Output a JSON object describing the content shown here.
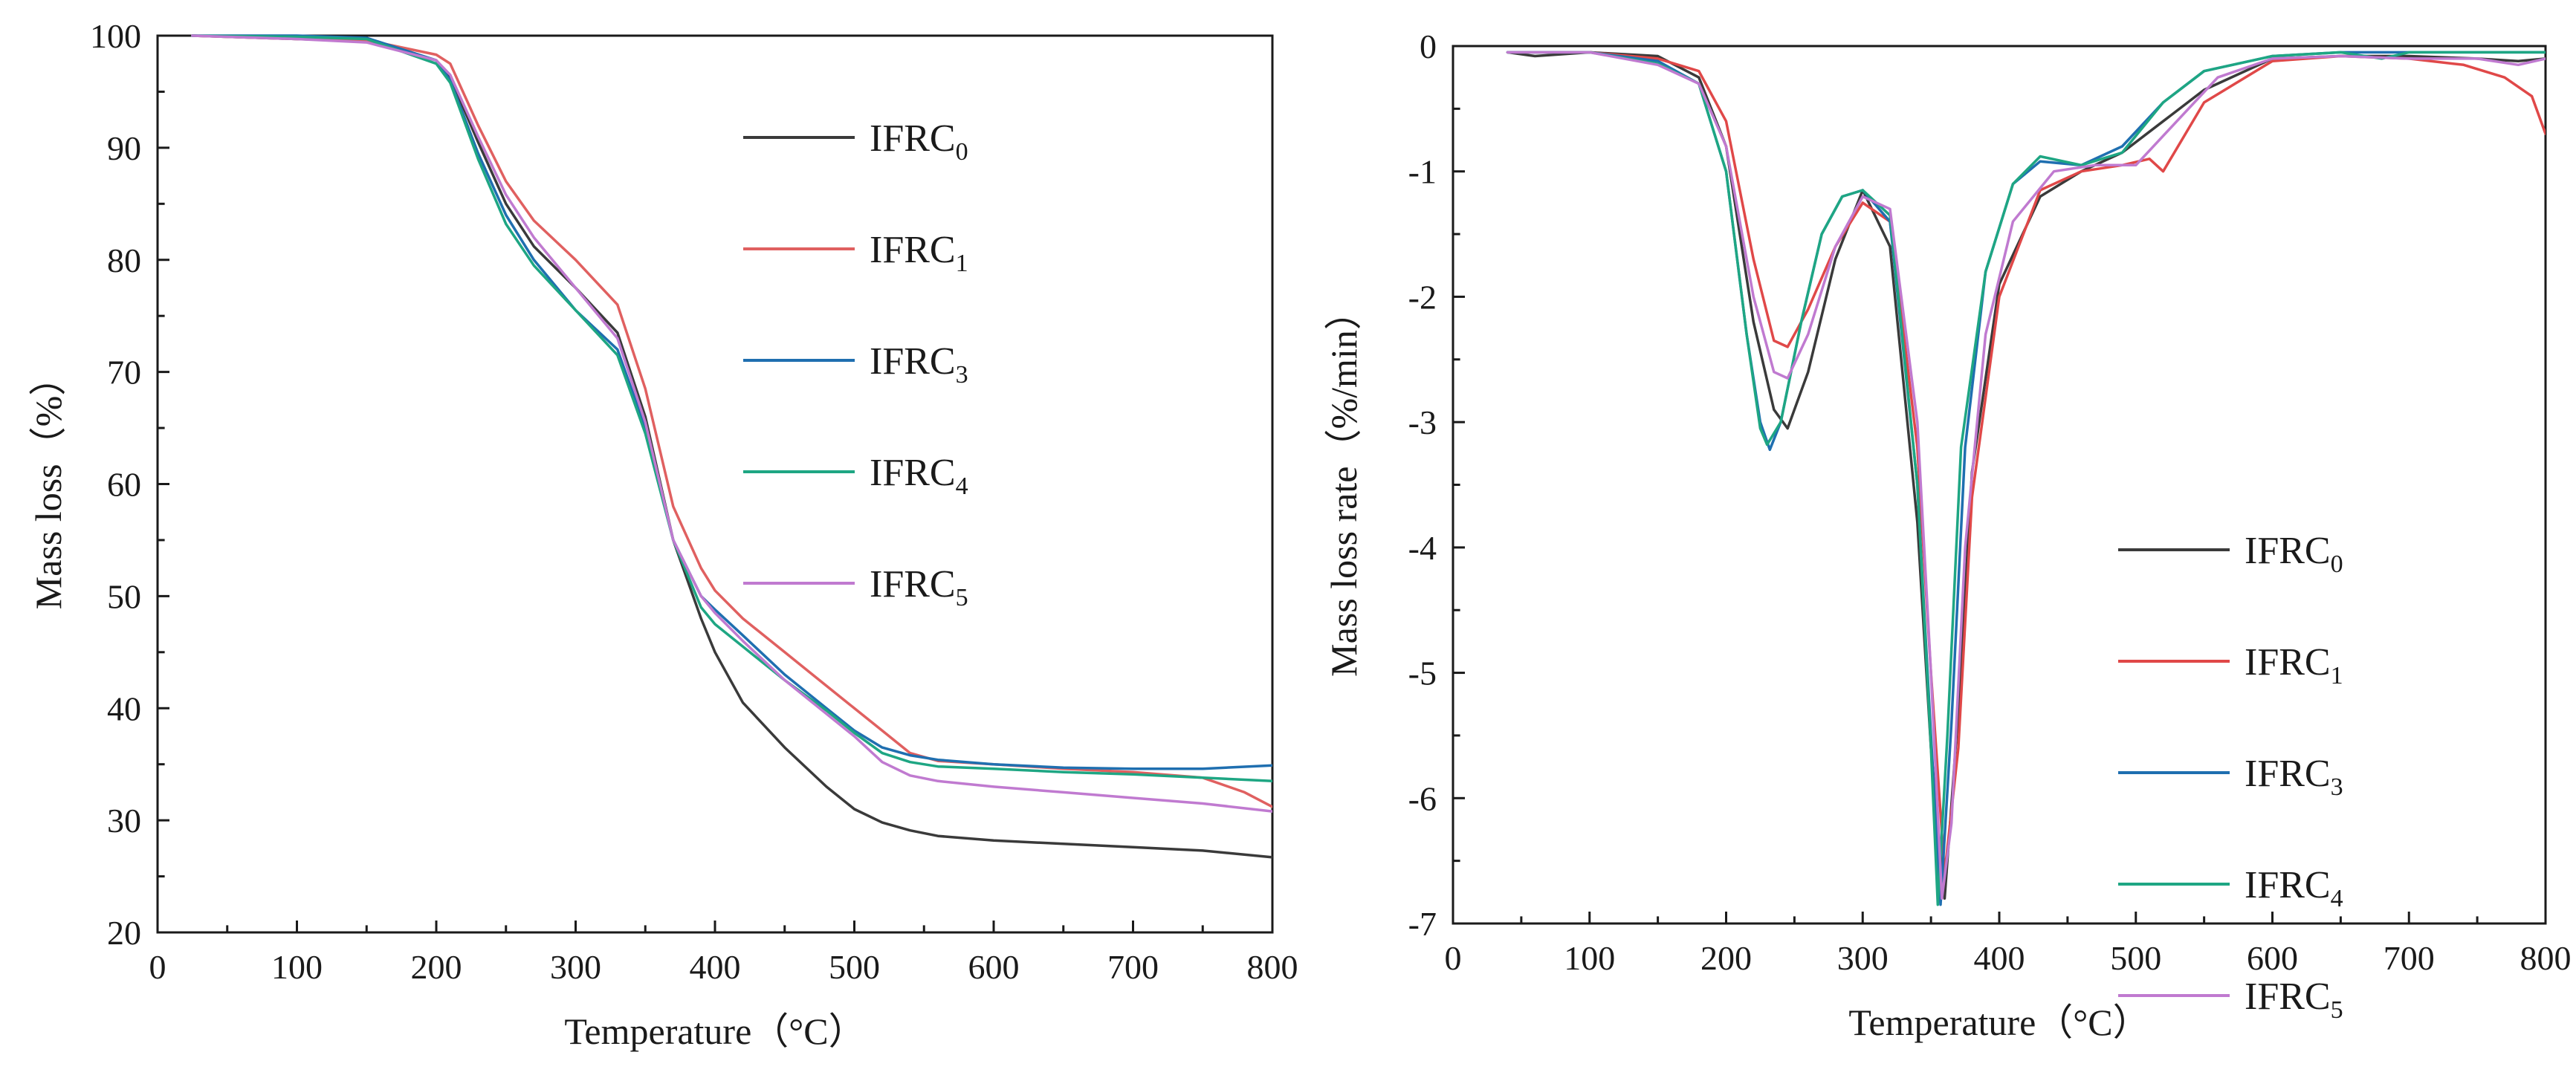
{
  "chart_data": [
    {
      "type": "line",
      "xlabel": "Temperature（°C）",
      "ylabel": "Mass loss（%）",
      "xlim": [
        0,
        800
      ],
      "ylim": [
        20,
        100
      ],
      "xticks": [
        0,
        100,
        200,
        300,
        400,
        500,
        600,
        700,
        800
      ],
      "yticks": [
        20,
        30,
        40,
        50,
        60,
        70,
        80,
        90,
        100
      ],
      "grid": false,
      "legend_position": "top-right",
      "series": [
        {
          "name": "IFRC",
          "sub": "0",
          "color": "#3a3a3a",
          "x": [
            25,
            100,
            150,
            200,
            210,
            230,
            250,
            270,
            300,
            330,
            350,
            370,
            390,
            400,
            420,
            450,
            480,
            500,
            520,
            540,
            560,
            600,
            650,
            700,
            750,
            800
          ],
          "y": [
            100,
            99.7,
            99.5,
            97.8,
            96.3,
            90.5,
            85,
            81.2,
            77.5,
            73.5,
            66,
            55,
            48,
            45,
            40.5,
            36.5,
            33,
            31,
            29.8,
            29.1,
            28.6,
            28.2,
            27.9,
            27.6,
            27.3,
            26.7
          ]
        },
        {
          "name": "IFRC",
          "sub": "1",
          "color": "#e06060",
          "x": [
            25,
            100,
            150,
            200,
            210,
            230,
            250,
            270,
            300,
            330,
            350,
            370,
            390,
            400,
            420,
            450,
            480,
            500,
            520,
            540,
            560,
            600,
            650,
            700,
            750,
            780,
            800
          ],
          "y": [
            100,
            99.7,
            99.6,
            98.3,
            97.5,
            92,
            87,
            83.5,
            80,
            76,
            68.5,
            58,
            52.5,
            50.5,
            48,
            45,
            42,
            40,
            38,
            36,
            35.3,
            35,
            34.6,
            34.3,
            33.8,
            32.5,
            31.2
          ]
        },
        {
          "name": "IFRC",
          "sub": "3",
          "color": "#1f6fb0",
          "x": [
            25,
            100,
            150,
            200,
            210,
            230,
            250,
            270,
            300,
            330,
            350,
            370,
            390,
            400,
            420,
            450,
            480,
            500,
            520,
            540,
            560,
            600,
            650,
            700,
            750,
            800
          ],
          "y": [
            100,
            100,
            99.8,
            97.8,
            96,
            89.5,
            84,
            80,
            75.5,
            72,
            65,
            55,
            50,
            48.8,
            46.5,
            43,
            40,
            38,
            36.5,
            35.8,
            35.4,
            35,
            34.7,
            34.6,
            34.6,
            34.9
          ]
        },
        {
          "name": "IFRC",
          "sub": "4",
          "color": "#1ea683",
          "x": [
            25,
            100,
            150,
            200,
            210,
            230,
            250,
            270,
            300,
            330,
            350,
            370,
            390,
            400,
            420,
            450,
            480,
            500,
            520,
            540,
            560,
            600,
            650,
            700,
            750,
            800
          ],
          "y": [
            100,
            99.9,
            99.7,
            97.5,
            95.8,
            89,
            83.2,
            79.5,
            75.5,
            71.5,
            64.5,
            55,
            49,
            47.5,
            45.5,
            42.5,
            39.8,
            37.8,
            36,
            35.2,
            34.8,
            34.6,
            34.3,
            34.1,
            33.8,
            33.5
          ]
        },
        {
          "name": "IFRC",
          "sub": "5",
          "color": "#c07ad0",
          "x": [
            25,
            100,
            150,
            200,
            210,
            230,
            250,
            270,
            300,
            330,
            350,
            370,
            390,
            400,
            420,
            450,
            480,
            500,
            520,
            540,
            560,
            600,
            650,
            700,
            750,
            800
          ],
          "y": [
            100,
            99.7,
            99.4,
            97.8,
            96.5,
            91,
            85.8,
            82,
            77.5,
            73,
            65.5,
            55,
            50,
            48.5,
            46,
            42.5,
            39.5,
            37.5,
            35.2,
            34,
            33.5,
            33,
            32.5,
            32,
            31.5,
            30.8
          ]
        }
      ]
    },
    {
      "type": "line",
      "xlabel": "Temperature（°C）",
      "ylabel": "Mass loss rate（%/min）",
      "xlim": [
        0,
        800
      ],
      "ylim": [
        -7,
        0
      ],
      "xticks": [
        0,
        100,
        200,
        300,
        400,
        500,
        600,
        700,
        800
      ],
      "yticks": [
        -7,
        -6,
        -5,
        -4,
        -3,
        -2,
        -1,
        0
      ],
      "grid": false,
      "legend_position": "bottom-right",
      "series": [
        {
          "name": "IFRC",
          "sub": "0",
          "color": "#3a3a3a",
          "x": [
            40,
            60,
            100,
            150,
            180,
            200,
            220,
            235,
            245,
            260,
            280,
            300,
            320,
            340,
            350,
            360,
            370,
            380,
            400,
            430,
            460,
            490,
            520,
            550,
            600,
            650,
            700,
            750,
            780,
            800
          ],
          "y": [
            -0.05,
            -0.08,
            -0.05,
            -0.08,
            -0.25,
            -0.8,
            -2.2,
            -2.9,
            -3.05,
            -2.6,
            -1.7,
            -1.15,
            -1.6,
            -3.8,
            -5.6,
            -6.8,
            -5.3,
            -3.4,
            -1.9,
            -1.2,
            -1.0,
            -0.85,
            -0.6,
            -0.35,
            -0.1,
            -0.08,
            -0.08,
            -0.1,
            -0.12,
            -0.1
          ]
        },
        {
          "name": "IFRC",
          "sub": "1",
          "color": "#e04848",
          "x": [
            40,
            100,
            150,
            180,
            200,
            220,
            235,
            245,
            260,
            280,
            300,
            320,
            340,
            350,
            360,
            370,
            380,
            400,
            430,
            460,
            490,
            510,
            520,
            550,
            600,
            650,
            700,
            740,
            770,
            790,
            800
          ],
          "y": [
            -0.05,
            -0.05,
            -0.1,
            -0.2,
            -0.6,
            -1.7,
            -2.35,
            -2.4,
            -2.1,
            -1.6,
            -1.25,
            -1.4,
            -3.2,
            -5.0,
            -6.6,
            -5.6,
            -3.6,
            -2.0,
            -1.15,
            -1.0,
            -0.95,
            -0.9,
            -1.0,
            -0.45,
            -0.12,
            -0.08,
            -0.1,
            -0.15,
            -0.25,
            -0.4,
            -0.7
          ]
        },
        {
          "name": "IFRC",
          "sub": "3",
          "color": "#1f6fb0",
          "x": [
            40,
            100,
            150,
            180,
            200,
            215,
            225,
            232,
            240,
            255,
            270,
            285,
            300,
            320,
            340,
            350,
            357,
            365,
            375,
            390,
            410,
            430,
            460,
            490,
            520,
            550,
            600,
            650,
            700,
            750,
            800
          ],
          "y": [
            -0.05,
            -0.05,
            -0.12,
            -0.3,
            -1.0,
            -2.3,
            -3.0,
            -3.22,
            -3.0,
            -2.2,
            -1.5,
            -1.2,
            -1.15,
            -1.4,
            -3.5,
            -5.5,
            -6.85,
            -5.4,
            -3.2,
            -1.8,
            -1.1,
            -0.92,
            -0.95,
            -0.8,
            -0.45,
            -0.2,
            -0.08,
            -0.05,
            -0.05,
            -0.05,
            -0.05
          ]
        },
        {
          "name": "IFRC",
          "sub": "4",
          "color": "#1ea683",
          "x": [
            40,
            100,
            150,
            180,
            200,
            215,
            225,
            230,
            240,
            255,
            270,
            285,
            300,
            320,
            340,
            350,
            355,
            362,
            372,
            390,
            410,
            430,
            460,
            490,
            520,
            550,
            600,
            650,
            680,
            700,
            750,
            800
          ],
          "y": [
            -0.05,
            -0.05,
            -0.14,
            -0.3,
            -1.0,
            -2.3,
            -3.05,
            -3.18,
            -3.0,
            -2.2,
            -1.5,
            -1.2,
            -1.15,
            -1.35,
            -3.5,
            -5.6,
            -6.85,
            -5.5,
            -3.2,
            -1.8,
            -1.1,
            -0.88,
            -0.95,
            -0.85,
            -0.45,
            -0.2,
            -0.08,
            -0.05,
            -0.1,
            -0.05,
            -0.05,
            -0.05
          ]
        },
        {
          "name": "IFRC",
          "sub": "5",
          "color": "#c07ad0",
          "x": [
            40,
            100,
            150,
            180,
            200,
            220,
            235,
            245,
            260,
            280,
            300,
            320,
            340,
            350,
            358,
            365,
            375,
            390,
            410,
            440,
            470,
            500,
            530,
            560,
            600,
            650,
            700,
            750,
            780,
            800
          ],
          "y": [
            -0.05,
            -0.05,
            -0.15,
            -0.3,
            -0.8,
            -2.0,
            -2.6,
            -2.65,
            -2.3,
            -1.6,
            -1.2,
            -1.3,
            -3.0,
            -5.0,
            -6.8,
            -6.2,
            -4.0,
            -2.3,
            -1.4,
            -1.0,
            -0.95,
            -0.95,
            -0.6,
            -0.25,
            -0.1,
            -0.08,
            -0.1,
            -0.1,
            -0.15,
            -0.1
          ]
        }
      ]
    }
  ]
}
